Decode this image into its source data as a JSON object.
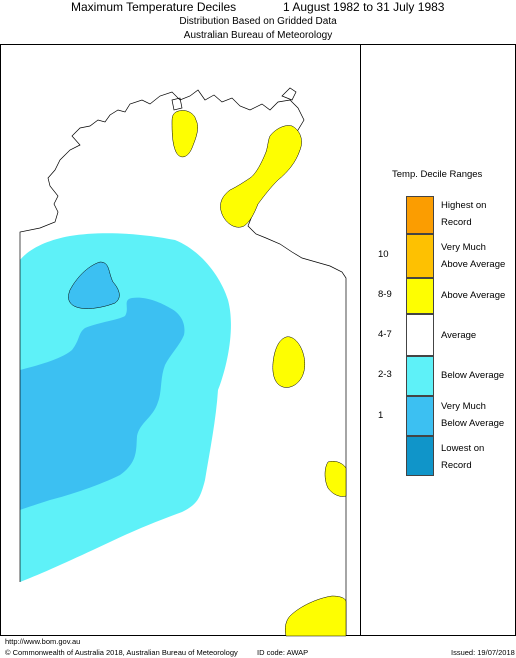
{
  "header": {
    "title": "Maximum Temperature Deciles",
    "date_range": "1 August 1982 to 31 July 1983",
    "subtitle_line1": "Distribution Based on Gridded Data",
    "subtitle_line2": "Australian Bureau of Meteorology"
  },
  "legend": {
    "title": "Temp. Decile Ranges",
    "categories": [
      {
        "range": "",
        "label": "Highest on Record",
        "color": "#fb9d01"
      },
      {
        "range": "10",
        "label": "Very Much Above Average",
        "color": "#fec101"
      },
      {
        "range": "8-9",
        "label": "Above Average",
        "color": "#fefe01"
      },
      {
        "range": "4-7",
        "label": "Average",
        "color": "#ffffff"
      },
      {
        "range": "2-3",
        "label": "Below Average",
        "color": "#5ef1f8"
      },
      {
        "range": "1",
        "label": "Very Much Below Average",
        "color": "#3cc0f2"
      },
      {
        "range": "",
        "label": "Lowest on Record",
        "color": "#1095c9"
      }
    ]
  },
  "footer": {
    "url": "http://www.bom.gov.au",
    "copyright": "© Commonwealth of Australia 2018, Australian Bureau of Meteorology",
    "id_code": "ID code: AWAP",
    "issued": "Issued: 19/07/2018"
  },
  "map": {
    "colors": {
      "above_average": "#fefe01",
      "below_average": "#5ef1f8",
      "very_much_below_average": "#3cc0f2",
      "outline": "#000000"
    }
  }
}
